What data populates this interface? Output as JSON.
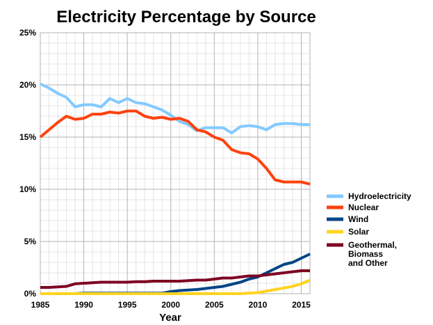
{
  "chart_data": {
    "type": "line",
    "title": "Electricity Percentage by Source",
    "xlabel": "Year",
    "ylabel": "",
    "xlim": [
      1985,
      2016
    ],
    "ylim": [
      0,
      25
    ],
    "xticks": [
      "1985",
      "1990",
      "1995",
      "2000",
      "2005",
      "2010",
      "2015"
    ],
    "yticks": [
      "0%",
      "5%",
      "10%",
      "15%",
      "20%",
      "25%"
    ],
    "grid": true,
    "legend_position": "right",
    "x": [
      1985,
      1986,
      1987,
      1988,
      1989,
      1990,
      1991,
      1992,
      1993,
      1994,
      1995,
      1996,
      1997,
      1998,
      1999,
      2000,
      2001,
      2002,
      2003,
      2004,
      2005,
      2006,
      2007,
      2008,
      2009,
      2010,
      2011,
      2012,
      2013,
      2014,
      2015,
      2016
    ],
    "series": [
      {
        "name": "Hydroelectricity",
        "color": "#83caff",
        "values": [
          20.1,
          19.7,
          19.2,
          18.8,
          17.9,
          18.1,
          18.1,
          17.9,
          18.7,
          18.3,
          18.7,
          18.3,
          18.2,
          17.9,
          17.6,
          17.1,
          16.5,
          16.2,
          15.6,
          15.9,
          15.9,
          15.9,
          15.4,
          16.0,
          16.1,
          16.0,
          15.7,
          16.2,
          16.3,
          16.3,
          16.2,
          16.2
        ]
      },
      {
        "name": "Nuclear",
        "color": "#ff420e",
        "values": [
          15.0,
          15.7,
          16.4,
          17.0,
          16.7,
          16.8,
          17.2,
          17.2,
          17.4,
          17.3,
          17.5,
          17.5,
          17.0,
          16.8,
          16.9,
          16.7,
          16.8,
          16.5,
          15.7,
          15.5,
          15.0,
          14.7,
          13.8,
          13.5,
          13.4,
          12.9,
          12.0,
          10.9,
          10.7,
          10.7,
          10.7,
          10.5
        ]
      },
      {
        "name": "Wind",
        "color": "#004586",
        "values": [
          0.0,
          0.0,
          0.0,
          0.0,
          0.0,
          0.05,
          0.05,
          0.05,
          0.05,
          0.05,
          0.05,
          0.05,
          0.05,
          0.05,
          0.05,
          0.2,
          0.3,
          0.35,
          0.4,
          0.5,
          0.6,
          0.7,
          0.9,
          1.1,
          1.4,
          1.6,
          2.0,
          2.4,
          2.8,
          3.0,
          3.4,
          3.8
        ]
      },
      {
        "name": "Solar",
        "color": "#ffd320",
        "values": [
          0.0,
          0.0,
          0.0,
          0.0,
          0.0,
          0.0,
          0.0,
          0.0,
          0.0,
          0.0,
          0.0,
          0.0,
          0.0,
          0.0,
          0.0,
          0.0,
          0.0,
          0.0,
          0.0,
          0.0,
          0.0,
          0.0,
          0.0,
          0.0,
          0.05,
          0.1,
          0.25,
          0.4,
          0.55,
          0.7,
          0.95,
          1.3
        ]
      },
      {
        "name": "Geothermal, Biomass and Other",
        "color": "#7e0021",
        "values": [
          0.6,
          0.6,
          0.65,
          0.7,
          0.95,
          1.0,
          1.05,
          1.1,
          1.1,
          1.1,
          1.1,
          1.15,
          1.15,
          1.2,
          1.2,
          1.2,
          1.2,
          1.25,
          1.3,
          1.3,
          1.4,
          1.5,
          1.5,
          1.6,
          1.7,
          1.7,
          1.8,
          1.9,
          2.0,
          2.1,
          2.2,
          2.2
        ]
      }
    ],
    "legend_lines": [
      [
        "Hydroelectricity"
      ],
      [
        "Nuclear"
      ],
      [
        "Wind"
      ],
      [
        "Solar"
      ],
      [
        "Geothermal,",
        "Biomass",
        "and Other"
      ]
    ]
  }
}
